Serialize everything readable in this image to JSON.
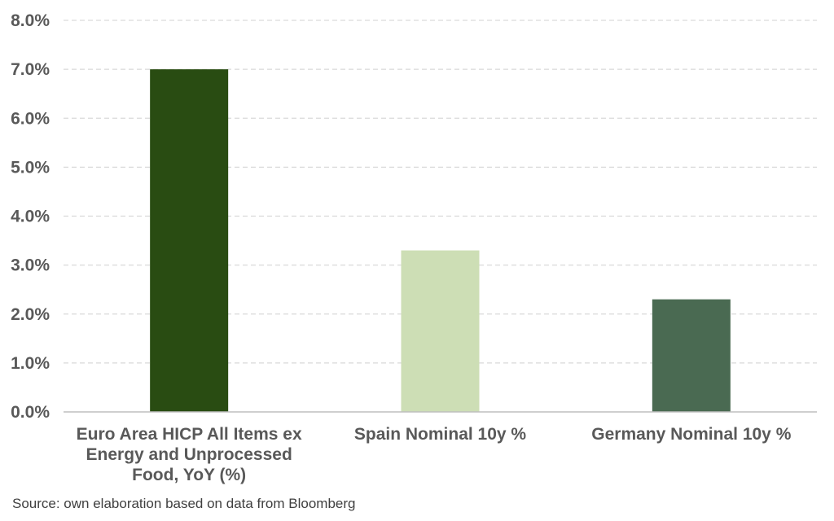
{
  "chart_data": {
    "type": "bar",
    "categories": [
      [
        "Euro Area HICP All Items ex",
        "Energy and Unprocessed",
        "Food, YoY (%)"
      ],
      [
        "Spain Nominal 10y %"
      ],
      [
        "Germany Nominal 10y %"
      ]
    ],
    "values": [
      7.0,
      3.3,
      2.3
    ],
    "bar_colors": [
      "#294c12",
      "#cddeb5",
      "#4a6a52"
    ],
    "y_ticks": [
      "0.0%",
      "1.0%",
      "2.0%",
      "3.0%",
      "4.0%",
      "5.0%",
      "6.0%",
      "7.0%",
      "8.0%"
    ],
    "ylim": [
      0,
      8
    ],
    "grid": true,
    "grid_color": "#d9d9d9",
    "title": "",
    "xlabel": "",
    "ylabel": ""
  },
  "source_note": "Source: own elaboration based on data from Bloomberg"
}
